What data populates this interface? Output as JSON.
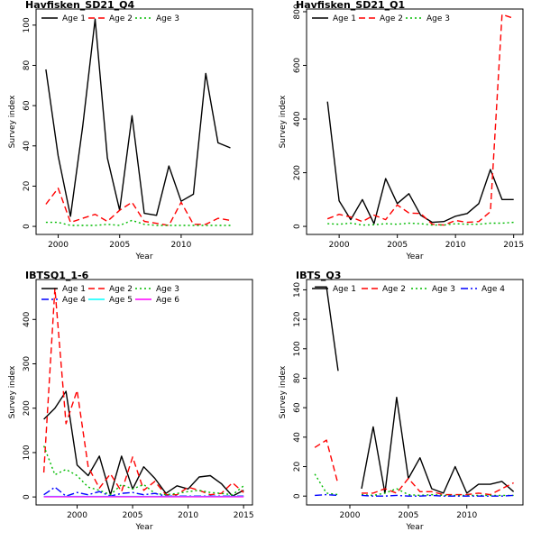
{
  "chart_data": [
    {
      "type": "line",
      "title": "Havfisken_SD21_Q4",
      "xlabel": "Year",
      "ylabel": "Survey index",
      "xlim": [
        1998.2,
        2015.8
      ],
      "ylim": [
        -4,
        108
      ],
      "xticks": [
        2000,
        2005,
        2010
      ],
      "yticks": [
        0,
        20,
        40,
        60,
        80,
        100
      ],
      "legend_ncol": 3,
      "series": [
        {
          "name": "Age 1",
          "color": "#000000",
          "dash": "",
          "x": [
            1999,
            2000,
            2001,
            2002,
            2003,
            2004,
            2005,
            2006,
            2007,
            2008,
            2009,
            2010,
            2011,
            2012,
            2013,
            2014
          ],
          "y": [
            78,
            35,
            5,
            50,
            103,
            34,
            8,
            55,
            6.5,
            5.5,
            30,
            12.5,
            16,
            76,
            41.5,
            39
          ]
        },
        {
          "name": "Age 2",
          "color": "#ff0000",
          "dash": "7,4",
          "x": [
            1999,
            2000,
            2001,
            2002,
            2003,
            2004,
            2005,
            2006,
            2007,
            2008,
            2009,
            2010,
            2011,
            2012,
            2013,
            2014
          ],
          "y": [
            11,
            19,
            2,
            4,
            6,
            2.5,
            8,
            12,
            2.5,
            1.5,
            0.5,
            12,
            1,
            1,
            4,
            3
          ]
        },
        {
          "name": "Age 3",
          "color": "#00bb00",
          "dash": "2,3",
          "x": [
            1999,
            2000,
            2001,
            2002,
            2003,
            2004,
            2005,
            2006,
            2007,
            2008,
            2009,
            2010,
            2011,
            2012,
            2013,
            2014
          ],
          "y": [
            2,
            2,
            0.5,
            0.5,
            0.5,
            1,
            0.5,
            3,
            1,
            0.5,
            0.5,
            0.5,
            0.5,
            0.5,
            0.5,
            0.5
          ]
        }
      ]
    },
    {
      "type": "line",
      "title": "Havfisken_SD21_Q1",
      "xlabel": "Year",
      "ylabel": "Survey index",
      "xlim": [
        1997.2,
        2015.8
      ],
      "ylim": [
        -30,
        810
      ],
      "xticks": [
        2000,
        2005,
        2010,
        2015
      ],
      "yticks": [
        0,
        200,
        400,
        600,
        800
      ],
      "legend_ncol": 3,
      "series": [
        {
          "name": "Age 1",
          "color": "#000000",
          "dash": "",
          "x": [
            1999,
            2000,
            2001,
            2002,
            2003,
            2004,
            2005,
            2006,
            2007,
            2008,
            2009,
            2010,
            2011,
            2012,
            2013,
            2014,
            2015
          ],
          "y": [
            465,
            95,
            25,
            100,
            10,
            178,
            85,
            122,
            42,
            15,
            18,
            38,
            48,
            85,
            212,
            100,
            100
          ]
        },
        {
          "name": "Age 2",
          "color": "#ff0000",
          "dash": "7,4",
          "x": [
            1999,
            2000,
            2001,
            2002,
            2003,
            2004,
            2005,
            2006,
            2007,
            2008,
            2009,
            2010,
            2011,
            2012,
            2013,
            2014,
            2015
          ],
          "y": [
            28,
            45,
            35,
            18,
            42,
            25,
            80,
            50,
            48,
            8,
            5,
            22,
            15,
            18,
            55,
            790,
            775
          ]
        },
        {
          "name": "Age 3",
          "color": "#00bb00",
          "dash": "2,3",
          "x": [
            1999,
            2000,
            2001,
            2002,
            2003,
            2004,
            2005,
            2006,
            2007,
            2008,
            2009,
            2010,
            2011,
            2012,
            2013,
            2014,
            2015
          ],
          "y": [
            10,
            8,
            12,
            5,
            6,
            10,
            8,
            12,
            10,
            5,
            5,
            10,
            8,
            8,
            12,
            12,
            15
          ]
        }
      ]
    },
    {
      "type": "line",
      "title": "IBTSQ1_1-6",
      "xlabel": "Year",
      "ylabel": "Survey index",
      "xlim": [
        1996.3,
        2015.8
      ],
      "ylim": [
        -18,
        490
      ],
      "xticks": [
        2000,
        2005,
        2010,
        2015
      ],
      "yticks": [
        0,
        100,
        200,
        300,
        400
      ],
      "legend_ncol": 3,
      "series": [
        {
          "name": "Age 1",
          "color": "#000000",
          "dash": "",
          "x": [
            1997,
            1998,
            1999,
            2000,
            2001,
            2002,
            2003,
            2004,
            2005,
            2006,
            2007,
            2008,
            2009,
            2010,
            2011,
            2012,
            2013,
            2014,
            2015
          ],
          "y": [
            175,
            200,
            238,
            72,
            48,
            92,
            5,
            92,
            18,
            68,
            42,
            8,
            25,
            18,
            45,
            48,
            30,
            2,
            15
          ]
        },
        {
          "name": "Age 2",
          "color": "#ff0000",
          "dash": "7,4",
          "x": [
            1997,
            1998,
            1999,
            2000,
            2001,
            2002,
            2003,
            2004,
            2005,
            2006,
            2007,
            2008,
            2009,
            2010,
            2011,
            2012,
            2013,
            2014,
            2015
          ],
          "y": [
            55,
            470,
            165,
            240,
            68,
            20,
            52,
            12,
            90,
            15,
            35,
            5,
            5,
            22,
            15,
            5,
            8,
            32,
            10
          ]
        },
        {
          "name": "Age 3",
          "color": "#00bb00",
          "dash": "2,3",
          "x": [
            1997,
            1998,
            1999,
            2000,
            2001,
            2002,
            2003,
            2004,
            2005,
            2006,
            2007,
            2008,
            2009,
            2010,
            2011,
            2012,
            2013,
            2014,
            2015
          ],
          "y": [
            115,
            50,
            62,
            48,
            22,
            15,
            5,
            28,
            18,
            28,
            8,
            5,
            8,
            12,
            15,
            10,
            8,
            5,
            25
          ]
        },
        {
          "name": "Age 4",
          "color": "#0000ff",
          "dash": "8,3,2,3",
          "x": [
            1997,
            1998,
            1999,
            2000,
            2001,
            2002,
            2003,
            2004,
            2005,
            2006,
            2007,
            2008,
            2009,
            2010,
            2011,
            2012,
            2013,
            2014,
            2015
          ],
          "y": [
            5,
            22,
            2,
            10,
            5,
            12,
            2,
            8,
            10,
            5,
            8,
            2,
            2,
            2,
            2,
            2,
            2,
            2,
            2
          ]
        },
        {
          "name": "Age 5",
          "color": "#00ffff",
          "dash": "",
          "x": [
            1997,
            1998,
            1999,
            2000,
            2001,
            2002,
            2003,
            2004,
            2005,
            2006,
            2007,
            2008,
            2009,
            2010,
            2011,
            2012,
            2013,
            2014,
            2015
          ],
          "y": [
            1,
            1,
            1,
            1,
            1,
            1,
            1,
            1,
            1,
            1,
            1,
            1,
            1,
            1,
            1,
            1,
            1,
            1,
            1
          ]
        },
        {
          "name": "Age 6",
          "color": "#ff00ff",
          "dash": "",
          "x": [
            1997,
            1998,
            1999,
            2000,
            2001,
            2002,
            2003,
            2004,
            2005,
            2006,
            2007,
            2008,
            2009,
            2010,
            2011,
            2012,
            2013,
            2014,
            2015
          ],
          "y": [
            0.5,
            0.5,
            0.5,
            0.5,
            0.5,
            0.5,
            0.5,
            0.5,
            0.5,
            0.5,
            0.5,
            0.5,
            0.5,
            0.5,
            0.5,
            0.5,
            0.5,
            0.5,
            0.5
          ]
        }
      ]
    },
    {
      "type": "line",
      "title": "IBTS_Q3",
      "xlabel": "Year",
      "ylabel": "Survey index",
      "xlim": [
        1996.3,
        2014.8
      ],
      "ylim": [
        -6,
        147
      ],
      "xticks": [
        2000,
        2005,
        2010
      ],
      "yticks": [
        0,
        20,
        40,
        60,
        80,
        100,
        120,
        140
      ],
      "legend_ncol": 4,
      "series": [
        {
          "name": "Age 1",
          "color": "#000000",
          "dash": "",
          "x": [
            1997,
            1998,
            1999,
            null,
            2001,
            2002,
            2003,
            2004,
            2005,
            2006,
            2007,
            2008,
            2009,
            2010,
            2011,
            2012,
            2013,
            2014
          ],
          "y": [
            142,
            142,
            85,
            null,
            5,
            47,
            2,
            67,
            12,
            26,
            5,
            2,
            20,
            2,
            8,
            8,
            10,
            3
          ]
        },
        {
          "name": "Age 2",
          "color": "#ff0000",
          "dash": "7,4",
          "x": [
            1997,
            1998,
            1999,
            null,
            2001,
            2002,
            2003,
            2004,
            2005,
            2006,
            2007,
            2008,
            2009,
            2010,
            2011,
            2012,
            2013,
            2014
          ],
          "y": [
            33,
            38,
            8,
            null,
            2,
            2,
            5,
            2,
            12,
            3,
            3,
            1,
            1,
            1,
            2,
            1,
            5,
            9
          ]
        },
        {
          "name": "Age 3",
          "color": "#00bb00",
          "dash": "2,3",
          "x": [
            1997,
            1998,
            1999,
            null,
            2001,
            2002,
            2003,
            2004,
            2005,
            2006,
            2007,
            2008,
            2009,
            2010,
            2011,
            2012,
            2013,
            2014
          ],
          "y": [
            15,
            2,
            1,
            null,
            1,
            0.5,
            2,
            5,
            1,
            0.5,
            1,
            0.5,
            0.5,
            0.5,
            0.5,
            0.5,
            0.5,
            0.5
          ]
        },
        {
          "name": "Age 4",
          "color": "#0000ff",
          "dash": "8,3,2,3",
          "x": [
            1997,
            1998,
            1999,
            null,
            2001,
            2002,
            2003,
            2004,
            2005,
            2006,
            2007,
            2008,
            2009,
            2010,
            2011,
            2012,
            2013,
            2014
          ],
          "y": [
            0.5,
            1,
            0.5,
            null,
            0.5,
            0,
            0,
            0.5,
            0,
            0,
            0.5,
            0,
            0,
            0,
            0,
            0,
            0,
            0.5
          ]
        }
      ]
    }
  ]
}
